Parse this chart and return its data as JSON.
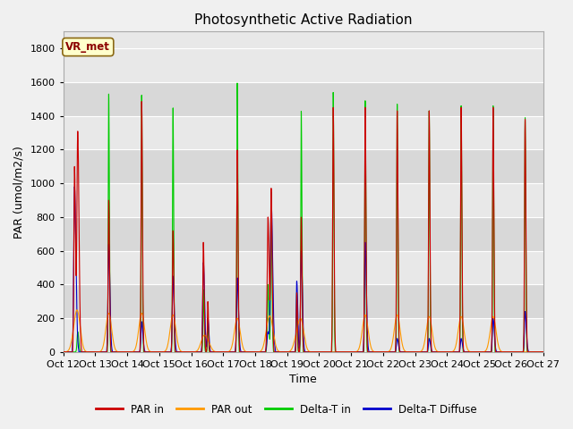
{
  "title": "Photosynthetic Active Radiation",
  "ylabel": "PAR (umol/m2/s)",
  "xlabel": "Time",
  "annotation": "VR_met",
  "ylim": [
    0,
    1900
  ],
  "yticks": [
    0,
    200,
    400,
    600,
    800,
    1000,
    1200,
    1400,
    1600,
    1800
  ],
  "xtick_labels": [
    "Oct 12",
    "Oct 13",
    "Oct 14",
    "Oct 15",
    "Oct 16",
    "Oct 17",
    "Oct 18",
    "Oct 19",
    "Oct 20",
    "Oct 21",
    "Oct 22",
    "Oct 23",
    "Oct 24",
    "Oct 25",
    "Oct 26",
    "Oct 27"
  ],
  "colors": {
    "par_in": "#cc0000",
    "par_out": "#ff9900",
    "delta_t_in": "#00cc00",
    "delta_t_diffuse": "#0000cc"
  },
  "legend_labels": [
    "PAR in",
    "PAR out",
    "Delta-T in",
    "Delta-T Diffuse"
  ],
  "plot_bg_color": "#e8e8e8",
  "band_colors": [
    "#e8e8e8",
    "#d8d8d8"
  ],
  "title_fontsize": 11,
  "label_fontsize": 9,
  "tick_fontsize": 8
}
